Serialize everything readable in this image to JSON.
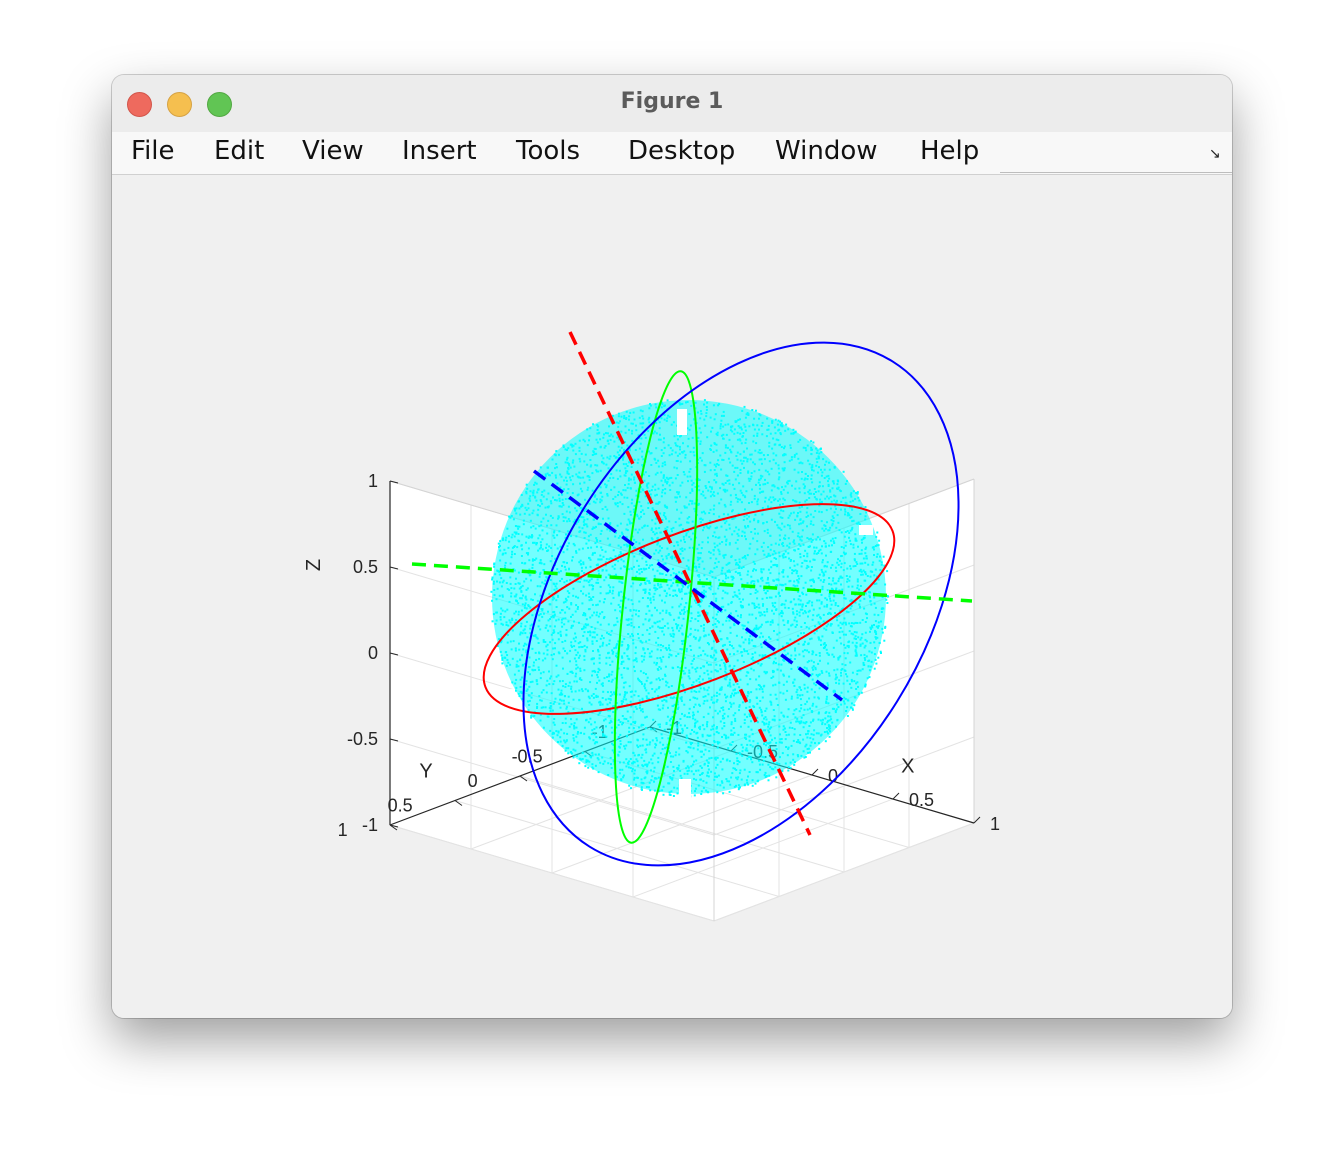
{
  "window": {
    "title": "Figure 1",
    "menu": [
      "File",
      "Edit",
      "View",
      "Insert",
      "Tools",
      "Desktop",
      "Window",
      "Help"
    ],
    "dock_icon": "dock-arrow-icon"
  },
  "chart_data": {
    "type": "scatter",
    "dimensions": 3,
    "xlabel": "X",
    "ylabel": "Y",
    "zlabel": "Z",
    "xlim": [
      -1,
      1
    ],
    "ylim": [
      -1,
      1
    ],
    "zlim": [
      -1,
      1
    ],
    "xticks": [
      "-1",
      "-0.5",
      "0",
      "0.5",
      "1"
    ],
    "yticks": [
      "-1",
      "-0.5",
      "0",
      "0.5",
      "1"
    ],
    "zticks": [
      "-1",
      "-0.5",
      "0",
      "0.5",
      "1"
    ],
    "grid": true,
    "view": {
      "azimuth": -37.5,
      "elevation": 30
    },
    "series": [
      {
        "kind": "scatter3",
        "shape": "unit sphere surface points",
        "radius": 0.85,
        "color": "#00ffff"
      },
      {
        "kind": "dashed-line",
        "color": "#ff0000",
        "from": [
          -1,
          0.25,
          1
        ],
        "to": [
          1,
          -0.25,
          -1
        ]
      },
      {
        "kind": "dashed-line",
        "color": "#00ff00",
        "from": [
          -1,
          1,
          0
        ],
        "to": [
          1,
          -1,
          0
        ]
      },
      {
        "kind": "dashed-line",
        "color": "#0000ff",
        "from": [
          -0.9,
          -0.1,
          0.45
        ],
        "to": [
          0.9,
          0.1,
          -0.45
        ]
      },
      {
        "kind": "ellipse",
        "color": "#ff0000",
        "label": ""
      },
      {
        "kind": "ellipse",
        "color": "#00ff00",
        "label": ""
      },
      {
        "kind": "ellipse",
        "color": "#0000ff",
        "label": ""
      }
    ]
  }
}
